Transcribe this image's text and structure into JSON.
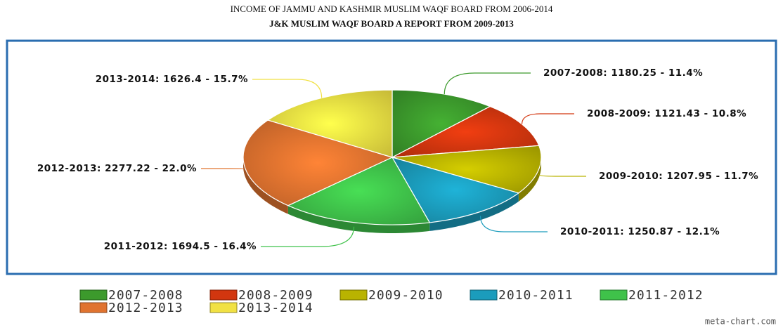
{
  "chart_data": {
    "type": "pie",
    "title": "INCOME OF JAMMU AND KASHMIR MUSLIM WAQF BOARD FROM 2006-2014",
    "subtitle": "J&K MUSLIM WAQF BOARD A REPORT FROM 2009-2013",
    "categories": [
      "2007-2008",
      "2008-2009",
      "2009-2010",
      "2010-2011",
      "2011-2012",
      "2012-2013",
      "2013-2014"
    ],
    "values": [
      1180.25,
      1121.43,
      1207.95,
      1250.87,
      1694.5,
      2277.22,
      1626.4
    ],
    "value_labels": [
      "2007-2008: 1180.25 - 11.4%",
      "2008-2009: 1121.43 - 10.8%",
      "2009-2010: 1207.95 - 11.7%",
      "2010-2011: 1250.87 - 12.1%",
      "2011-2012: 1694.5 - 16.4%",
      "2012-2013: 2277.22 - 22.0%",
      "2013-2014: 1626.4 - 15.7%"
    ],
    "colors": [
      "#3c9a2c",
      "#d2360f",
      "#b9b300",
      "#1b9cbc",
      "#3fc24a",
      "#e0732f",
      "#f1e143"
    ],
    "legend": "bottom",
    "credit": "meta-chart.com"
  }
}
